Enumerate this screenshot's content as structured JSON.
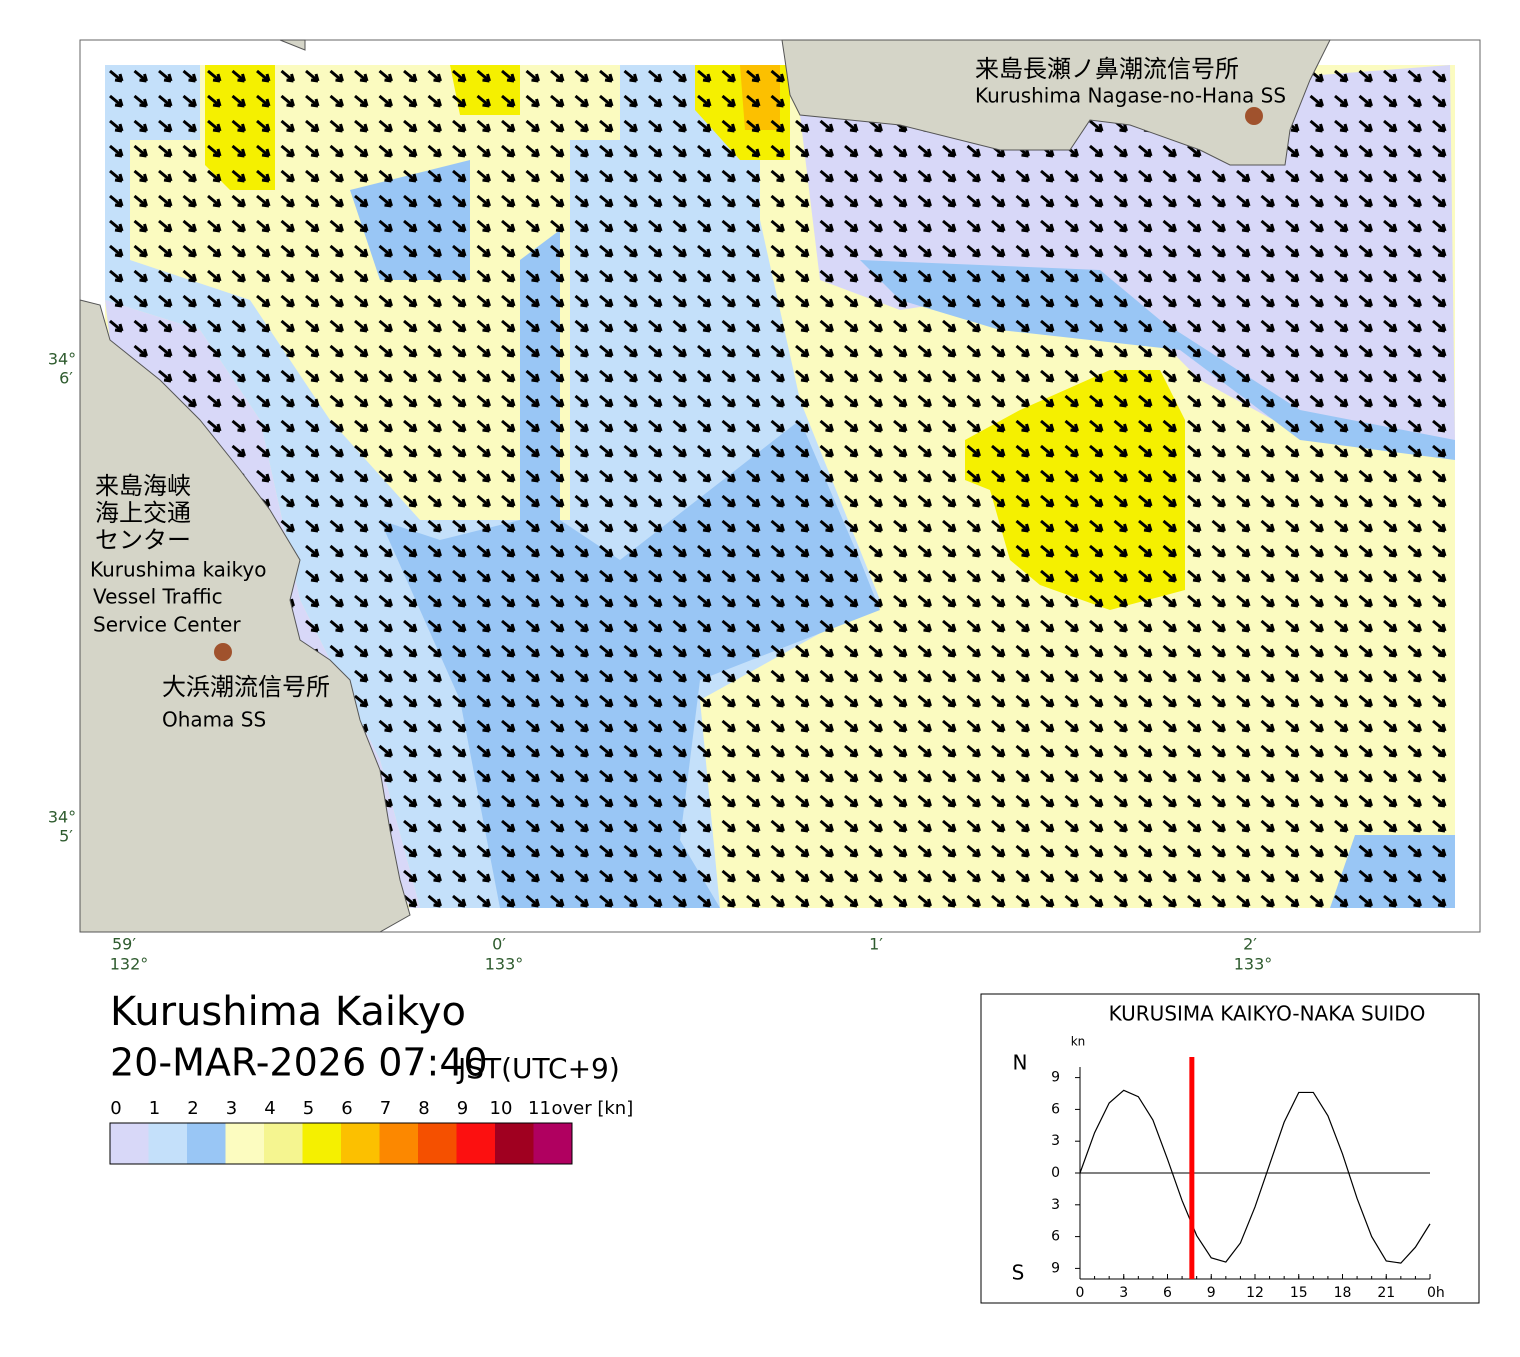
{
  "map": {
    "places": [
      {
        "ja": "来島長瀬ノ鼻潮流信号所",
        "en": "Kurushima Nagase-no-Hana SS"
      },
      {
        "ja": "来島海峡",
        "ja2": "海上交通",
        "ja3": "センター",
        "en": "Kurushima kaikyo",
        "en2": "Vessel Traffic",
        "en3": "Service Center"
      },
      {
        "ja": "大浜潮流信号所",
        "en": "Ohama SS"
      }
    ],
    "lat_labels": [
      {
        "deg": "34°",
        "min": "6′"
      },
      {
        "deg": "34°",
        "min": "5′"
      }
    ],
    "lon_labels": [
      {
        "min": "59′",
        "deg": "132°"
      },
      {
        "min": "0′",
        "deg": "133°"
      },
      {
        "min": "1′"
      },
      {
        "min": "2′",
        "deg": "133°"
      }
    ]
  },
  "header": {
    "title": "Kurushima Kaikyo",
    "datetime": "20-MAR-2026 07:40",
    "zone": "JST(UTC+9)"
  },
  "legend": {
    "labels": [
      "0",
      "1",
      "2",
      "3",
      "4",
      "5",
      "6",
      "7",
      "8",
      "9",
      "10",
      "11",
      "over [kn]"
    ],
    "colors": [
      "#d8d8f8",
      "#c4e0fa",
      "#99c6f5",
      "#fcfcc0",
      "#f5f590",
      "#f5f000",
      "#fcc000",
      "#fc8800",
      "#f55000",
      "#fc1010",
      "#a00020",
      "#b00060"
    ]
  },
  "chart_data": {
    "type": "line",
    "title": "KURUSIMA KAIKYO-NAKA SUIDO",
    "y_unit": "kn",
    "north": "N",
    "south": "S",
    "x": [
      0,
      1,
      2,
      3,
      4,
      5,
      6,
      7,
      8,
      9,
      10,
      11,
      12,
      13,
      14,
      15,
      16,
      17,
      18,
      19,
      20,
      21,
      22,
      23,
      24
    ],
    "values": [
      0,
      3.8,
      6.6,
      7.8,
      7.2,
      5.0,
      1.3,
      -2.6,
      -5.9,
      -8.0,
      -8.4,
      -6.6,
      -3.2,
      0.8,
      4.8,
      7.6,
      7.6,
      5.4,
      1.8,
      -2.4,
      -6.0,
      -8.3,
      -8.5,
      -7.0,
      -4.8
    ],
    "color": "#000000",
    "now": 7.67,
    "now_color": "#ff0000",
    "xlim": [
      0,
      24
    ],
    "xticks": [
      0,
      3,
      6,
      9,
      12,
      15,
      18,
      21,
      {
        "value": 24,
        "label": "0h"
      }
    ],
    "ylim": [
      -10,
      10
    ],
    "yticks": [
      {
        "value": 9,
        "label": "9"
      },
      6,
      3,
      0,
      {
        "value": -3,
        "label": "3"
      },
      {
        "value": -6,
        "label": "6"
      },
      {
        "value": -9,
        "label": "9"
      }
    ]
  }
}
